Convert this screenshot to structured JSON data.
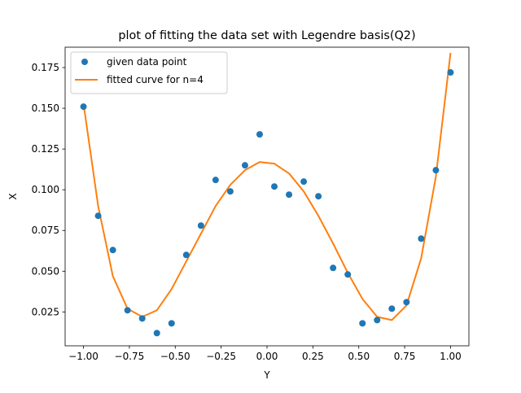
{
  "chart_data": {
    "type": "scatter",
    "title": "plot of fitting the data set with Legendre basis(Q2)",
    "xlabel": "Y",
    "ylabel": "X",
    "xlim": [
      -1.1,
      1.1
    ],
    "ylim": [
      0.0042,
      0.1875
    ],
    "xticks": [
      -1.0,
      -0.75,
      -0.5,
      -0.25,
      0.0,
      0.25,
      0.5,
      0.75,
      1.0
    ],
    "xtick_labels": [
      "−1.00",
      "−0.75",
      "−0.50",
      "−0.25",
      "0.00",
      "0.25",
      "0.50",
      "0.75",
      "1.00"
    ],
    "yticks": [
      0.025,
      0.05,
      0.075,
      0.1,
      0.125,
      0.15,
      0.175
    ],
    "ytick_labels": [
      "0.025",
      "0.050",
      "0.075",
      "0.100",
      "0.125",
      "0.150",
      "0.175"
    ],
    "grid": false,
    "legend_position": "top-left",
    "series": [
      {
        "name": "given data point",
        "kind": "scatter",
        "color": "#1f77b4",
        "x": [
          -1.0,
          -0.92,
          -0.84,
          -0.76,
          -0.68,
          -0.6,
          -0.52,
          -0.44,
          -0.36,
          -0.28,
          -0.2,
          -0.12,
          -0.04,
          0.04,
          0.12,
          0.2,
          0.28,
          0.36,
          0.44,
          0.52,
          0.6,
          0.68,
          0.76,
          0.84,
          0.92,
          1.0
        ],
        "y": [
          0.151,
          0.084,
          0.063,
          0.026,
          0.021,
          0.012,
          0.018,
          0.06,
          0.078,
          0.106,
          0.099,
          0.115,
          0.134,
          0.102,
          0.097,
          0.105,
          0.096,
          0.052,
          0.048,
          0.018,
          0.02,
          0.027,
          0.031,
          0.07,
          0.112,
          0.172
        ]
      },
      {
        "name": "fitted curve for n=4",
        "kind": "line",
        "color": "#ff7f0e",
        "x": [
          -1.0,
          -0.92,
          -0.84,
          -0.76,
          -0.68,
          -0.6,
          -0.52,
          -0.44,
          -0.36,
          -0.28,
          -0.2,
          -0.12,
          -0.04,
          0.04,
          0.12,
          0.2,
          0.28,
          0.36,
          0.44,
          0.52,
          0.6,
          0.68,
          0.76,
          0.84,
          0.92,
          1.0
        ],
        "y": [
          0.153,
          0.09,
          0.047,
          0.027,
          0.022,
          0.026,
          0.039,
          0.056,
          0.073,
          0.09,
          0.103,
          0.112,
          0.117,
          0.116,
          0.11,
          0.099,
          0.084,
          0.067,
          0.049,
          0.033,
          0.022,
          0.02,
          0.029,
          0.058,
          0.108,
          0.184
        ]
      }
    ]
  }
}
